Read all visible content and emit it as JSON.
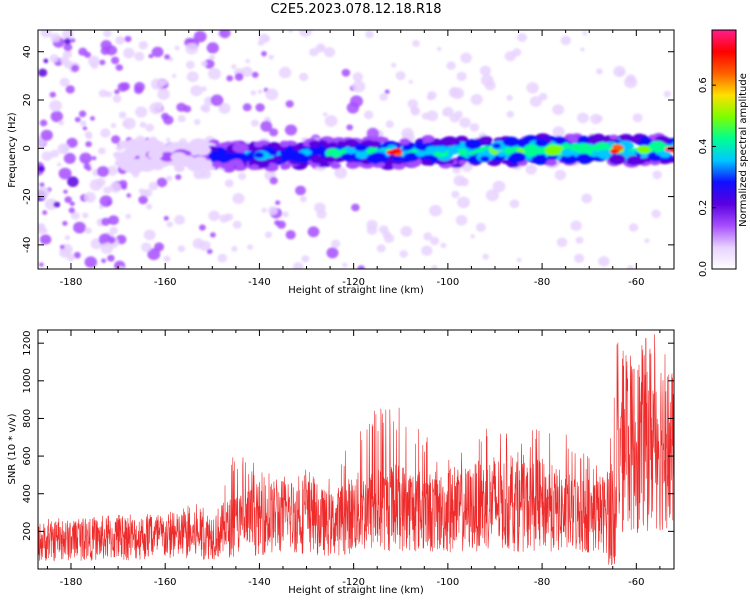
{
  "title": "C2E5.2023.078.12.18.R18",
  "colors": {
    "background": "#ffffff",
    "line": "#ee2a2a",
    "axis": "#000000",
    "colormap": [
      "#ffffff",
      "#e8d2ff",
      "#a64dff",
      "#5a00e0",
      "#1010ff",
      "#00c8ff",
      "#00ff90",
      "#7cff00",
      "#ffe000",
      "#ff6000",
      "#ff0000",
      "#ff1e8c"
    ]
  },
  "chart_data": [
    {
      "type": "heatmap",
      "title": "",
      "xlabel": "Height of straight line (km)",
      "ylabel": "Frequency (Hz)",
      "xlim": [
        -187,
        -52
      ],
      "ylim": [
        -50,
        49
      ],
      "xticks": [
        -180,
        -160,
        -140,
        -120,
        -100,
        -80,
        -60
      ],
      "yticks": [
        -40,
        -20,
        0,
        20,
        40
      ],
      "colorbar": {
        "label": "Normalized spectral amplitude",
        "range": [
          0,
          0.78
        ],
        "ticks": [
          "0.0",
          "0.2",
          "0.4",
          "0.6"
        ],
        "tick_values": [
          0,
          0.2,
          0.4,
          0.6
        ]
      },
      "features": {
        "band_center_hz_start": -4,
        "band_center_hz_end": 0,
        "band_halfwidth_hz": 6,
        "band_peak_amplitude": 0.75,
        "hotspots_km": [
          -111,
          -64,
          -53
        ]
      }
    },
    {
      "type": "line",
      "title": "",
      "xlabel": "Height of straight line (km)",
      "ylabel": "SNR (10 * v/v)",
      "xlim": [
        -187,
        -52
      ],
      "ylim": [
        0,
        1270
      ],
      "xticks": [
        -180,
        -160,
        -140,
        -120,
        -100,
        -80,
        -60
      ],
      "yticks": [
        200,
        400,
        600,
        800,
        1000,
        1200
      ],
      "series": [
        {
          "x": [
            -187,
            -180,
            -170,
            -160,
            -150,
            -145,
            -140,
            -135,
            -130,
            -125,
            -120,
            -115,
            -110,
            -105,
            -100,
            -95,
            -90,
            -85,
            -80,
            -75,
            -70,
            -66,
            -65,
            -64,
            -62,
            -60,
            -58,
            -56,
            -54,
            -52
          ],
          "y": [
            160,
            170,
            180,
            190,
            200,
            260,
            300,
            310,
            320,
            260,
            330,
            350,
            370,
            340,
            330,
            360,
            400,
            360,
            380,
            330,
            320,
            330,
            450,
            700,
            750,
            720,
            800,
            780,
            760,
            650
          ],
          "y_peak": [
            280,
            270,
            290,
            300,
            380,
            650,
            540,
            490,
            560,
            480,
            760,
            880,
            900,
            720,
            580,
            690,
            800,
            640,
            860,
            720,
            600,
            580,
            1000,
            1240,
            1150,
            1200,
            1150,
            1270,
            1220,
            1000
          ]
        }
      ]
    }
  ]
}
